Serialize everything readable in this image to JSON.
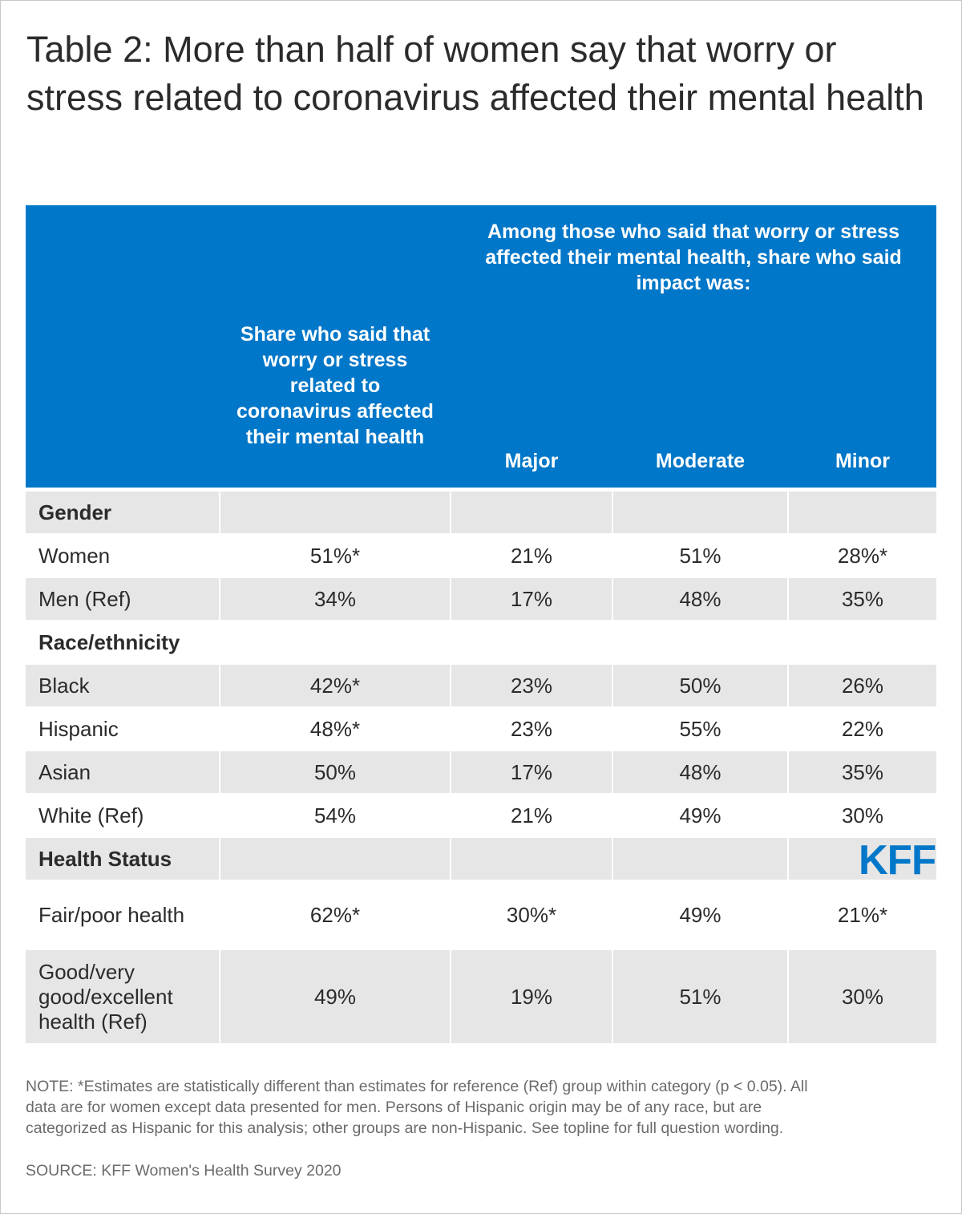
{
  "title": "Table 2: More than half of women say that worry or stress related to coronavirus affected their mental health",
  "header": {
    "share_col": "Share who said that worry or stress related to coronavirus affected their mental health",
    "group_label": "Among those who said that worry or stress affected their mental health, share who said impact was:",
    "major": "Major",
    "moderate": "Moderate",
    "minor": "Minor"
  },
  "colors": {
    "header_bg": "#0077c8",
    "row_bg": "#e6e6e6",
    "logo": "#0077c8"
  },
  "chart_data": {
    "type": "table",
    "title": "Table 2: More than half of women say that worry or stress related to coronavirus affected their mental health",
    "columns": [
      "",
      "Share who said that worry or stress related to coronavirus affected their mental health",
      "Major",
      "Moderate",
      "Minor"
    ],
    "sections": [
      {
        "label": "Gender",
        "rows": [
          {
            "label": "Women",
            "values": [
              "51%*",
              "21%",
              "51%",
              "28%*"
            ]
          },
          {
            "label": "Men (Ref)",
            "values": [
              "34%",
              "17%",
              "48%",
              "35%"
            ]
          }
        ]
      },
      {
        "label": "Race/ethnicity",
        "rows": [
          {
            "label": "Black",
            "values": [
              "42%*",
              "23%",
              "50%",
              "26%"
            ]
          },
          {
            "label": "Hispanic",
            "values": [
              "48%*",
              "23%",
              "55%",
              "22%"
            ]
          },
          {
            "label": "Asian",
            "values": [
              "50%",
              "17%",
              "48%",
              "35%"
            ]
          },
          {
            "label": "White (Ref)",
            "values": [
              "54%",
              "21%",
              "49%",
              "30%"
            ]
          }
        ]
      },
      {
        "label": "Health Status",
        "rows": [
          {
            "label": "Fair/poor health",
            "values": [
              "62%*",
              "30%*",
              "49%",
              "21%*"
            ]
          },
          {
            "label": "Good/very good/excellent health (Ref)",
            "values": [
              "49%",
              "19%",
              "51%",
              "30%"
            ]
          }
        ]
      }
    ]
  },
  "note": "NOTE: *Estimates are statistically different than estimates for reference (Ref) group within category (p < 0.05). All data are for women except data presented for men. Persons of Hispanic origin may be of any race, but are categorized as Hispanic for this analysis; other groups are non-Hispanic. See topline for full question wording.",
  "source": "SOURCE: KFF Women's Health Survey 2020",
  "logo_text": "KFF"
}
